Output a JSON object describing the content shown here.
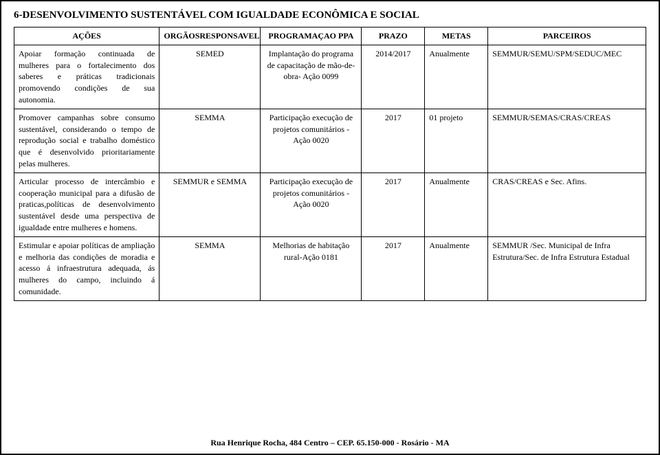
{
  "title": "6-DESENVOLVIMENTO SUSTENTÁVEL COM IGUALDADE ECONÔMICA E SOCIAL",
  "headers": {
    "acoes": "AÇÕES",
    "org": "ORGÃOSRESPONSAVEL",
    "prog": "PROGRAMAÇAO PPA",
    "prazo": "PRAZO",
    "metas": "METAS",
    "parc": "PARCEIROS"
  },
  "rows": [
    {
      "acoes": "Apoiar formação continuada de mulheres para o fortalecimento dos saberes e práticas tradicionais promovendo condições de sua autonomia.",
      "org": "SEMED",
      "prog": "Implantação do programa de capacitação de mão-de-obra- Ação 0099",
      "prazo": "2014/2017",
      "metas": "Anualmente",
      "parc": "SEMMUR/SEMU/SPM/SEDUC/MEC"
    },
    {
      "acoes": "Promover campanhas sobre consumo sustentável, considerando o tempo de reprodução social e trabalho doméstico que é desenvolvido prioritariamente pelas mulheres.",
      "org": "SEMMA",
      "prog": "Participação execução de projetos comunitários -Ação 0020",
      "prazo": "2017",
      "metas": "01 projeto",
      "parc": "SEMMUR/SEMAS/CRAS/CREAS"
    },
    {
      "acoes": "Articular processo de intercâmbio e cooperação municipal para a difusão de praticas,políticas de desenvolvimento sustentável desde uma perspectiva de igualdade entre mulheres e homens.",
      "org": "SEMMUR e SEMMA",
      "prog": "Participação execução de projetos comunitários -Ação 0020",
      "prazo": "2017",
      "metas": "Anualmente",
      "parc": "CRAS/CREAS e Sec. Afins."
    },
    {
      "acoes": "Estimular e apoiar políticas de ampliação e melhoria das condições de moradia e acesso á infraestrutura adequada, ás mulheres do campo, incluindo á comunidade.",
      "org": "SEMMA",
      "prog": "Melhorias de habitação rural-Ação 0181",
      "prazo": "2017",
      "metas": "Anualmente",
      "parc": "SEMMUR /Sec. Municipal de Infra Estrutura/Sec. de Infra Estrutura Estadual"
    }
  ],
  "footer": "Rua Henrique Rocha, 484 Centro – CEP. 65.150-000 - Rosário - MA"
}
